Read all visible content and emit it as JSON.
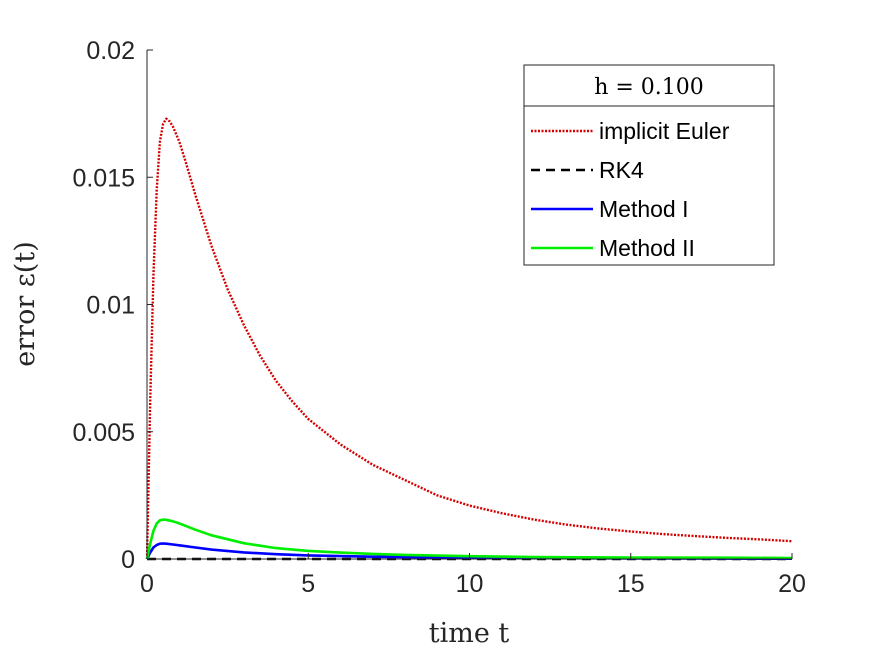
{
  "chart_data": {
    "type": "line",
    "title": "",
    "xlabel": "time t",
    "ylabel": "error ε(t)",
    "xlim": [
      0,
      20
    ],
    "ylim": [
      0,
      0.02
    ],
    "xticks": [
      0,
      5,
      10,
      15,
      20
    ],
    "yticks": [
      0,
      0.005,
      0.01,
      0.015,
      0.02
    ],
    "xtick_labels": [
      "0",
      "5",
      "10",
      "15",
      "20"
    ],
    "ytick_labels": [
      "0",
      "0.005",
      "0.01",
      "0.015",
      "0.02"
    ],
    "grid": false,
    "legend": {
      "title": "h = 0.100",
      "placement": "top-right"
    },
    "series": [
      {
        "name": "implicit Euler",
        "color": "#d40000",
        "style": "dotted",
        "x": [
          0,
          0.1,
          0.2,
          0.3,
          0.4,
          0.5,
          0.6,
          0.7,
          0.8,
          1.0,
          1.2,
          1.5,
          2.0,
          2.5,
          3.0,
          3.5,
          4.0,
          4.5,
          5.0,
          6.0,
          7.0,
          8.0,
          9.0,
          10.0,
          11.0,
          12.0,
          13.0,
          14.0,
          15.0,
          16.0,
          17.0,
          18.0,
          19.0,
          20.0
        ],
        "y": [
          0,
          0.0062,
          0.0111,
          0.0145,
          0.0164,
          0.0171,
          0.0173,
          0.0172,
          0.017,
          0.0164,
          0.0156,
          0.0143,
          0.0123,
          0.0106,
          0.0092,
          0.008,
          0.007,
          0.0062,
          0.0055,
          0.0045,
          0.0037,
          0.0031,
          0.0025,
          0.0021,
          0.0018,
          0.00155,
          0.00135,
          0.0012,
          0.00108,
          0.00098,
          0.0009,
          0.00083,
          0.00077,
          0.0007
        ]
      },
      {
        "name": "RK4",
        "color": "#000000",
        "style": "dashed",
        "x": [
          0,
          20
        ],
        "y": [
          0,
          0
        ]
      },
      {
        "name": "Method I",
        "color": "#0000ff",
        "style": "solid",
        "x": [
          0,
          0.1,
          0.2,
          0.3,
          0.4,
          0.5,
          0.6,
          0.8,
          1.0,
          1.5,
          2.0,
          3.0,
          4.0,
          5.0,
          7.0,
          10.0,
          13.0,
          16.0,
          20.0
        ],
        "y": [
          0,
          0.00025,
          0.00045,
          0.00055,
          0.0006,
          0.00061,
          0.0006,
          0.00057,
          0.00054,
          0.00045,
          0.00037,
          0.00026,
          0.00019,
          0.00014,
          9e-05,
          5e-05,
          3e-05,
          2e-05,
          1e-05
        ]
      },
      {
        "name": "Method II",
        "color": "#00ee00",
        "style": "solid",
        "x": [
          0,
          0.1,
          0.2,
          0.3,
          0.4,
          0.5,
          0.6,
          0.8,
          1.0,
          1.5,
          2.0,
          3.0,
          4.0,
          5.0,
          6.0,
          7.0,
          8.0,
          10.0,
          12.0,
          15.0,
          18.0,
          20.0
        ],
        "y": [
          0,
          0.0006,
          0.0011,
          0.0014,
          0.00152,
          0.00155,
          0.00154,
          0.00148,
          0.0014,
          0.00115,
          0.00093,
          0.00062,
          0.00043,
          0.00032,
          0.00025,
          0.0002,
          0.00016,
          0.00011,
          8e-05,
          6e-05,
          5e-05,
          4e-05
        ]
      }
    ]
  }
}
